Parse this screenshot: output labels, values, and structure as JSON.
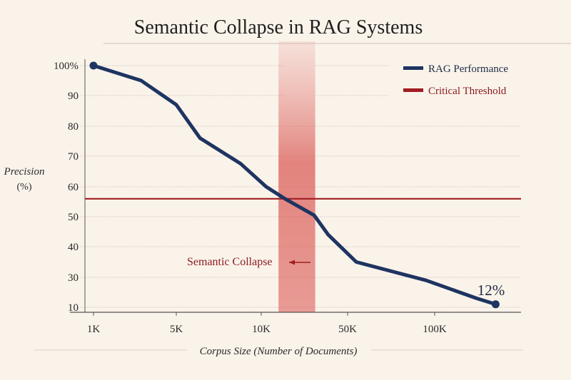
{
  "chart_data": {
    "type": "line",
    "title": "Semantic Collapse in RAG Systems",
    "xlabel": "Corpus Size (Number of Documents)",
    "ylabel": "Precision",
    "ylabel_unit": "(%)",
    "x_tick_labels": [
      "1K",
      "5K",
      "10K",
      "50K",
      "100K"
    ],
    "x_tick_values": [
      1000,
      5000,
      10000,
      50000,
      100000
    ],
    "y_tick_labels": [
      "100%",
      "90",
      "80",
      "70",
      "60",
      "50",
      "40",
      "30",
      "10"
    ],
    "y_tick_values": [
      100,
      90,
      80,
      70,
      60,
      50,
      40,
      30,
      10
    ],
    "grid": true,
    "legend_position": "top-right",
    "series": [
      {
        "name": "RAG Performance",
        "color": "#1e3461",
        "x": [
          1000,
          3300,
          5000,
          6400,
          8800,
          12300,
          21000,
          34500,
          41000,
          55000,
          95000,
          124000,
          135000
        ],
        "y": [
          100,
          95,
          87,
          76,
          67.5,
          60,
          56,
          50.5,
          44,
          35,
          28,
          16,
          12
        ]
      }
    ],
    "threshold": {
      "name": "Critical Threshold",
      "value": 56,
      "color": "#a11d21"
    },
    "collapse_band": {
      "label": "Semantic Collapse",
      "x_range": [
        18000,
        35000
      ],
      "color": "#d9534f"
    },
    "end_label": "12%"
  }
}
